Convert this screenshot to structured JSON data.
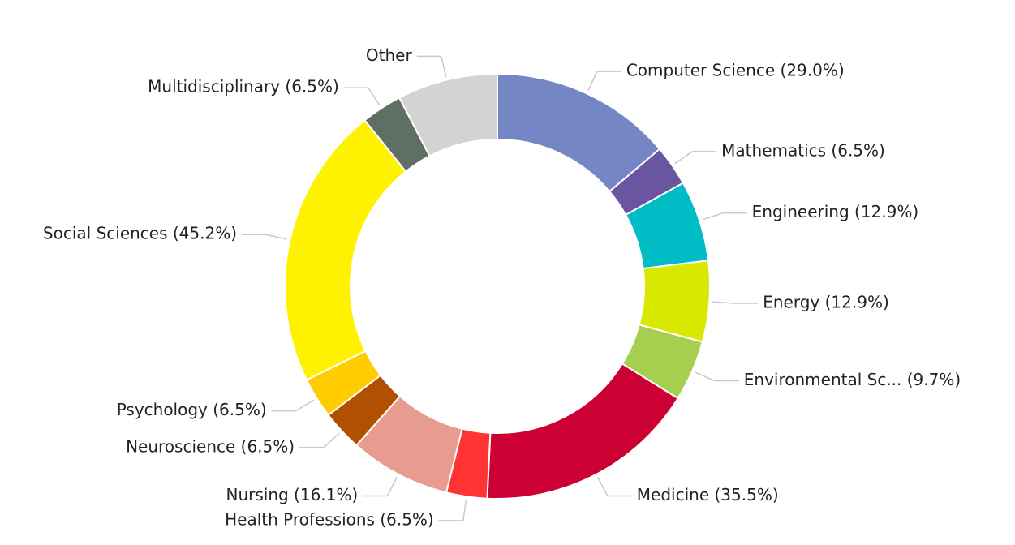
{
  "chart_data": {
    "type": "donut",
    "categories": [
      "Computer Science (29.0%)",
      "Mathematics (6.5%)",
      "Engineering (12.9%)",
      "Energy (12.9%)",
      "Environmental Sc... (9.7%)",
      "Medicine (35.5%)",
      "Health Professions (6.5%)",
      "Nursing (16.1%)",
      "Neuroscience (6.5%)",
      "Psychology (6.5%)",
      "Social Sciences (45.2%)",
      "Multidisciplinary (6.5%)",
      "Other"
    ],
    "values": [
      29.0,
      6.5,
      12.9,
      12.9,
      9.7,
      35.5,
      6.5,
      16.1,
      6.5,
      6.5,
      45.2,
      6.5,
      16
    ],
    "colors": [
      "#7586c4",
      "#6a55a0",
      "#00bcc4",
      "#d8e800",
      "#a6cf50",
      "#cc0033",
      "#ff3333",
      "#e89c90",
      "#b05000",
      "#ffcc00",
      "#fff200",
      "#5f6f63",
      "#d3d3d3"
    ]
  }
}
